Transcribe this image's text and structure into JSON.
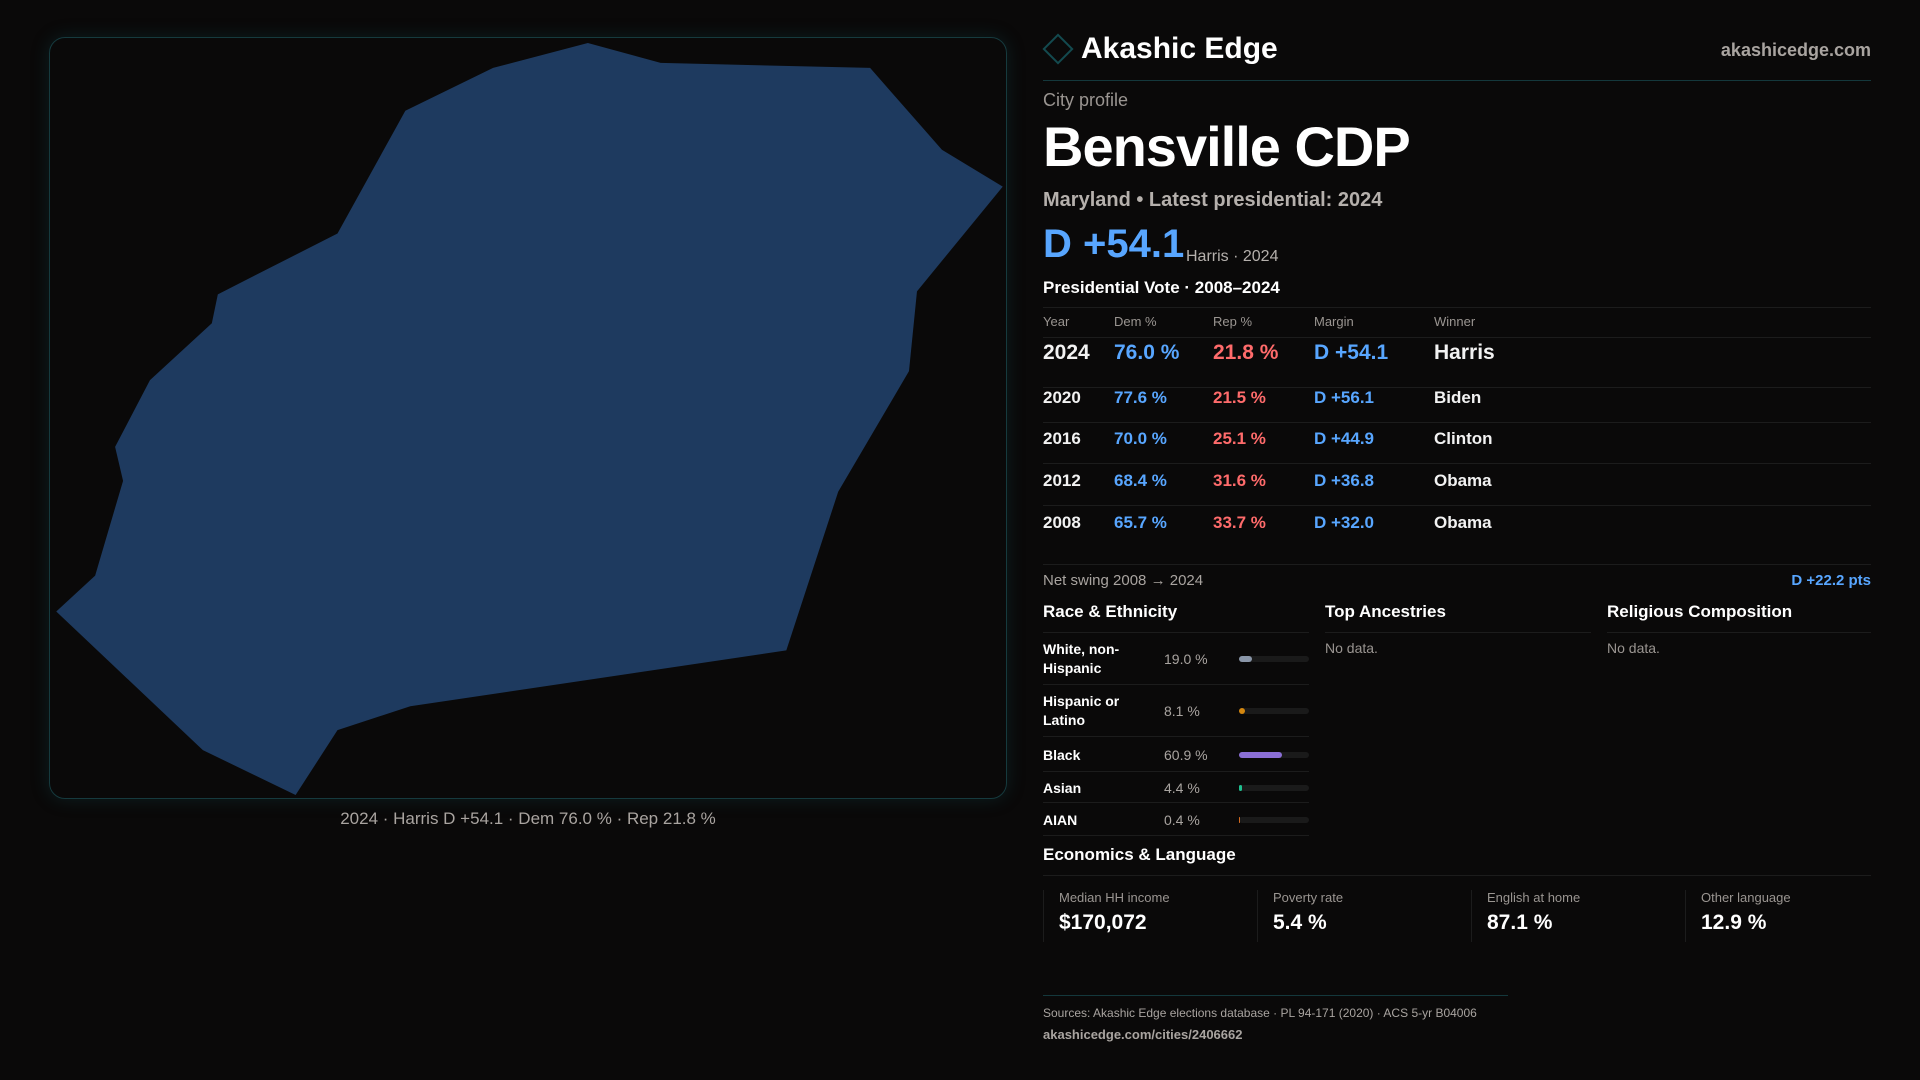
{
  "map": {
    "fill": "#1e3a5f",
    "caption": "2024 · Harris D +54.1 · Dem 76.0 % · Rep 21.8 %"
  },
  "header": {
    "brand": "Akashic Edge",
    "site": "akashicedge.com"
  },
  "profile": {
    "kicker": "City profile",
    "title": "Bensville CDP",
    "subtitle": "Maryland • Latest presidential: 2024",
    "margin": "D +54.1",
    "margin_sub": "Harris · 2024"
  },
  "votes": {
    "title": "Presidential Vote · 2008–2024",
    "headers": [
      "Year",
      "Dem %",
      "Rep %",
      "Margin",
      "Winner"
    ],
    "rows": [
      {
        "year": "2024",
        "dem": "76.0 %",
        "rep": "21.8 %",
        "margin": "D +54.1",
        "winner": "Harris"
      },
      {
        "year": "2020",
        "dem": "77.6 %",
        "rep": "21.5 %",
        "margin": "D +56.1",
        "winner": "Biden"
      },
      {
        "year": "2016",
        "dem": "70.0 %",
        "rep": "25.1 %",
        "margin": "D +44.9",
        "winner": "Clinton"
      },
      {
        "year": "2012",
        "dem": "68.4 %",
        "rep": "31.6 %",
        "margin": "D +36.8",
        "winner": "Obama"
      },
      {
        "year": "2008",
        "dem": "65.7 %",
        "rep": "33.7 %",
        "margin": "D +32.0",
        "winner": "Obama"
      }
    ],
    "swing_label": "Net swing 2008 → 2024",
    "swing_value": "D +22.2 pts"
  },
  "race": {
    "title": "Race & Ethnicity",
    "items": [
      {
        "label": "White, non-Hispanic",
        "pct": "19.0 %",
        "value": 19.0,
        "color": "#8a96a8"
      },
      {
        "label": "Hispanic or Latino",
        "pct": "8.1 %",
        "value": 8.1,
        "color": "#d4870f"
      },
      {
        "label": "Black",
        "pct": "60.9 %",
        "value": 60.9,
        "color": "#8b6fd6"
      },
      {
        "label": "Asian",
        "pct": "4.4 %",
        "value": 4.4,
        "color": "#1fbf8f"
      },
      {
        "label": "AIAN",
        "pct": "0.4 %",
        "value": 0.4,
        "color": "#d46a1f"
      }
    ]
  },
  "ancestries": {
    "title": "Top Ancestries",
    "empty": "No data."
  },
  "religion": {
    "title": "Religious Composition",
    "empty": "No data."
  },
  "econ": {
    "title": "Economics & Language",
    "stats": [
      {
        "label": "Median HH income",
        "value": "$170,072"
      },
      {
        "label": "Poverty rate",
        "value": "5.4 %"
      },
      {
        "label": "English at home",
        "value": "87.1 %"
      },
      {
        "label": "Other language",
        "value": "12.9 %"
      }
    ]
  },
  "footer": {
    "sources": "Sources: Akashic Edge elections database · PL 94-171 (2020) · ACS 5-yr B04006",
    "url": "akashicedge.com/cities/2406662"
  }
}
